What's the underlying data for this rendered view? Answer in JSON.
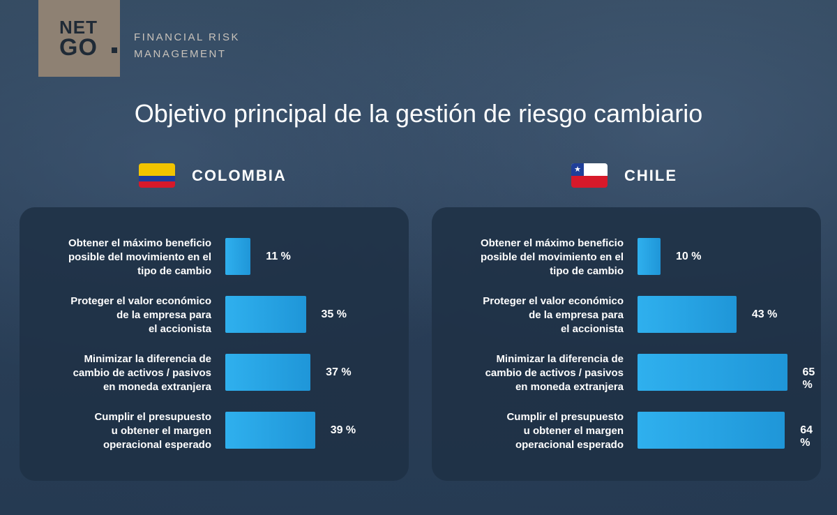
{
  "logo": {
    "line1": "NET",
    "line2": "GO",
    "tagline1": "FINANCIAL RISK",
    "tagline2": "MANAGEMENT"
  },
  "title": "Objetivo principal de la gestión de riesgo cambiario",
  "colors": {
    "bar": "#2fb0ee",
    "panel": "#1f3146",
    "logo_bg": "#8e8173"
  },
  "chart_data": [
    {
      "type": "bar",
      "orientation": "horizontal",
      "title": "COLOMBIA",
      "categories": [
        "Obtener el máximo beneficio posible del movimiento en el tipo de cambio",
        "Proteger el valor económico de la empresa para el accionista",
        "Minimizar la diferencia de cambio de activos / pasivos en moneda extranjera",
        "Cumplir el presupuesto u obtener el margen operacional esperado"
      ],
      "label_lines": [
        [
          "Obtener el máximo beneficio",
          "posible del movimiento en el",
          "tipo de cambio"
        ],
        [
          "Proteger el valor económico",
          "de la empresa para",
          "el accionista"
        ],
        [
          "Minimizar la diferencia de",
          "cambio de activos / pasivos",
          "en moneda extranjera"
        ],
        [
          "Cumplir el presupuesto",
          "u obtener el margen",
          "operacional esperado"
        ]
      ],
      "values": [
        11,
        35,
        37,
        39
      ],
      "value_labels": [
        "11 %",
        "35 %",
        "37 %",
        "39 %"
      ],
      "xlim": [
        0,
        100
      ]
    },
    {
      "type": "bar",
      "orientation": "horizontal",
      "title": "CHILE",
      "categories": [
        "Obtener el máximo beneficio posible del movimiento en el tipo de cambio",
        "Proteger el valor económico de la empresa para el accionista",
        "Minimizar la diferencia de cambio de activos / pasivos en moneda extranjera",
        "Cumplir el presupuesto u obtener el margen operacional esperado"
      ],
      "label_lines": [
        [
          "Obtener el máximo beneficio",
          "posible del movimiento en el",
          "tipo de cambio"
        ],
        [
          "Proteger el valor económico",
          "de la empresa para",
          "el accionista"
        ],
        [
          "Minimizar la diferencia de",
          "cambio de activos / pasivos",
          "en moneda extranjera"
        ],
        [
          "Cumplir el presupuesto",
          "u obtener el margen",
          "operacional esperado"
        ]
      ],
      "values": [
        10,
        43,
        65,
        64
      ],
      "value_labels": [
        "10 %",
        "43 %",
        "65 %",
        "64 %"
      ],
      "xlim": [
        0,
        100
      ]
    }
  ]
}
